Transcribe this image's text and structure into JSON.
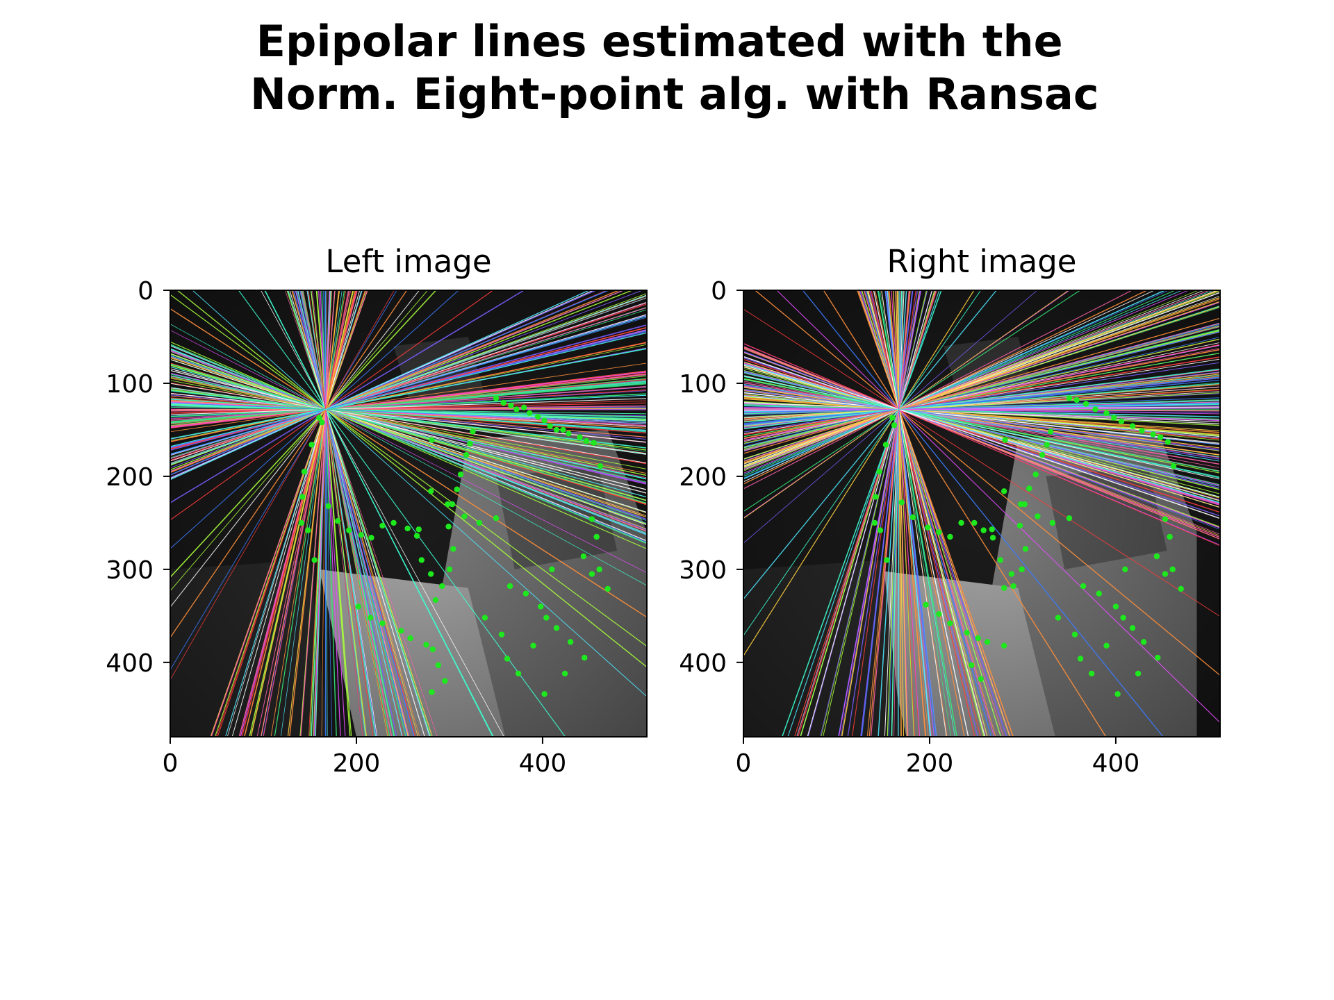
{
  "figure": {
    "title_lines": [
      "Epipolar lines estimated with the ",
      " Norm. Eight-point alg. with Ransac"
    ]
  },
  "chart_data": [
    {
      "type": "image",
      "title": "Left image",
      "xlabel": "",
      "ylabel": "",
      "xlim": [
        0,
        512
      ],
      "ylim": [
        480,
        0
      ],
      "x_ticks": [
        0,
        200,
        400
      ],
      "y_ticks": [
        0,
        100,
        200,
        300,
        400
      ],
      "epipole": [
        167,
        128
      ],
      "line_color_palette": [
        "#ff3b3b",
        "#3b7bff",
        "#35e87a",
        "#ffd23f",
        "#e64dff",
        "#4de8ff",
        "#ff8f3b",
        "#ffffff",
        "#a8ff3b",
        "#ff5fa8",
        "#7a5cff",
        "#3bffd0"
      ],
      "point_color": "#1ee81e",
      "points": [
        [
          350,
          116
        ],
        [
          358,
          121
        ],
        [
          366,
          124
        ],
        [
          372,
          128
        ],
        [
          380,
          126
        ],
        [
          386,
          132
        ],
        [
          395,
          136
        ],
        [
          402,
          140
        ],
        [
          408,
          146
        ],
        [
          415,
          150
        ],
        [
          422,
          150
        ],
        [
          428,
          154
        ],
        [
          440,
          158
        ],
        [
          447,
          162
        ],
        [
          455,
          164
        ],
        [
          160,
          137
        ],
        [
          163,
          142
        ],
        [
          152,
          166
        ],
        [
          144,
          195
        ],
        [
          142,
          222
        ],
        [
          141,
          250
        ],
        [
          148,
          258
        ],
        [
          155,
          290
        ],
        [
          325,
          152
        ],
        [
          322,
          165
        ],
        [
          318,
          177
        ],
        [
          312,
          198
        ],
        [
          308,
          214
        ],
        [
          303,
          230
        ],
        [
          299,
          254
        ],
        [
          304,
          278
        ],
        [
          300,
          300
        ],
        [
          292,
          318
        ],
        [
          285,
          333
        ],
        [
          170,
          232
        ],
        [
          180,
          248
        ],
        [
          192,
          258
        ],
        [
          205,
          263
        ],
        [
          216,
          266
        ],
        [
          228,
          253
        ],
        [
          240,
          250
        ],
        [
          255,
          256
        ],
        [
          265,
          264
        ],
        [
          270,
          290
        ],
        [
          280,
          305
        ],
        [
          202,
          340
        ],
        [
          215,
          352
        ],
        [
          228,
          358
        ],
        [
          248,
          366
        ],
        [
          258,
          374
        ],
        [
          275,
          381
        ],
        [
          282,
          386
        ],
        [
          288,
          403
        ],
        [
          295,
          420
        ],
        [
          281,
          432
        ],
        [
          365,
          318
        ],
        [
          382,
          326
        ],
        [
          398,
          340
        ],
        [
          404,
          352
        ],
        [
          415,
          363
        ],
        [
          430,
          378
        ],
        [
          445,
          395
        ],
        [
          453,
          305
        ],
        [
          461,
          300
        ],
        [
          470,
          321
        ],
        [
          402,
          434
        ],
        [
          424,
          412
        ],
        [
          444,
          286
        ],
        [
          453,
          246
        ],
        [
          458,
          265
        ],
        [
          462,
          189
        ],
        [
          281,
          161
        ],
        [
          267,
          257
        ],
        [
          350,
          245
        ],
        [
          356,
          370
        ],
        [
          338,
          352
        ],
        [
          410,
          300
        ],
        [
          390,
          382
        ],
        [
          362,
          396
        ],
        [
          374,
          412
        ],
        [
          316,
          243
        ],
        [
          298,
          230
        ],
        [
          280,
          216
        ],
        [
          332,
          250
        ]
      ]
    },
    {
      "type": "image",
      "title": "Right image",
      "xlabel": "",
      "ylabel": "",
      "xlim": [
        0,
        512
      ],
      "ylim": [
        480,
        0
      ],
      "x_ticks": [
        0,
        200,
        400
      ],
      "y_ticks": [
        0,
        100,
        200,
        300,
        400
      ],
      "epipole": [
        167,
        128
      ],
      "line_color_palette": [
        "#ff3b3b",
        "#3b7bff",
        "#35e87a",
        "#ffd23f",
        "#e64dff",
        "#4de8ff",
        "#ff8f3b",
        "#ffffff",
        "#a8ff3b",
        "#ff5fa8",
        "#7a5cff",
        "#3bffd0"
      ],
      "point_color": "#1ee81e",
      "points": [
        [
          350,
          116
        ],
        [
          358,
          118
        ],
        [
          368,
          122
        ],
        [
          378,
          128
        ],
        [
          390,
          132
        ],
        [
          398,
          137
        ],
        [
          406,
          141
        ],
        [
          418,
          146
        ],
        [
          428,
          151
        ],
        [
          440,
          155
        ],
        [
          448,
          158
        ],
        [
          456,
          163
        ],
        [
          160,
          137
        ],
        [
          162,
          145
        ],
        [
          153,
          166
        ],
        [
          146,
          195
        ],
        [
          142,
          222
        ],
        [
          141,
          250
        ],
        [
          147,
          258
        ],
        [
          154,
          290
        ],
        [
          330,
          152
        ],
        [
          326,
          166
        ],
        [
          321,
          177
        ],
        [
          314,
          198
        ],
        [
          307,
          213
        ],
        [
          302,
          230
        ],
        [
          297,
          253
        ],
        [
          303,
          278
        ],
        [
          299,
          300
        ],
        [
          290,
          318
        ],
        [
          280,
          320
        ],
        [
          170,
          228
        ],
        [
          182,
          244
        ],
        [
          198,
          255
        ],
        [
          210,
          260
        ],
        [
          222,
          265
        ],
        [
          234,
          250
        ],
        [
          248,
          250
        ],
        [
          258,
          258
        ],
        [
          268,
          266
        ],
        [
          276,
          290
        ],
        [
          288,
          305
        ],
        [
          196,
          338
        ],
        [
          210,
          348
        ],
        [
          222,
          358
        ],
        [
          240,
          368
        ],
        [
          252,
          374
        ],
        [
          262,
          378
        ],
        [
          280,
          382
        ],
        [
          245,
          403
        ],
        [
          255,
          418
        ],
        [
          365,
          318
        ],
        [
          382,
          326
        ],
        [
          400,
          340
        ],
        [
          408,
          352
        ],
        [
          418,
          363
        ],
        [
          430,
          378
        ],
        [
          445,
          395
        ],
        [
          453,
          305
        ],
        [
          461,
          300
        ],
        [
          470,
          321
        ],
        [
          402,
          434
        ],
        [
          424,
          412
        ],
        [
          444,
          286
        ],
        [
          453,
          246
        ],
        [
          458,
          265
        ],
        [
          462,
          189
        ],
        [
          281,
          161
        ],
        [
          267,
          257
        ],
        [
          350,
          245
        ],
        [
          356,
          370
        ],
        [
          338,
          352
        ],
        [
          410,
          300
        ],
        [
          390,
          382
        ],
        [
          362,
          396
        ],
        [
          374,
          412
        ],
        [
          316,
          243
        ],
        [
          298,
          230
        ],
        [
          280,
          216
        ],
        [
          332,
          250
        ]
      ]
    }
  ]
}
